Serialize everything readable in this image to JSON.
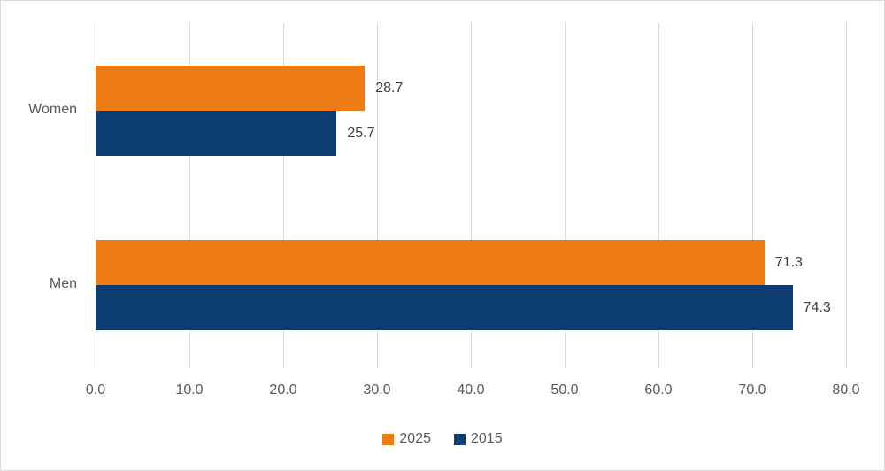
{
  "chart": {
    "colors": {
      "series_2025": "#ED7C14",
      "series_2015": "#0E3D74",
      "gridline": "#D9D9D9",
      "border": "#D9D9D9",
      "axis_text": "#595959",
      "data_label_text": "#404040",
      "background": "#FFFFFF"
    }
  },
  "chart_data": {
    "type": "bar",
    "orientation": "horizontal",
    "title": "",
    "xlabel": "",
    "ylabel": "",
    "categories": [
      "Women",
      "Men"
    ],
    "series": [
      {
        "name": "2025",
        "color": "#ED7C14",
        "values": [
          28.7,
          71.3
        ]
      },
      {
        "name": "2015",
        "color": "#0E3D74",
        "values": [
          25.7,
          74.3
        ]
      }
    ],
    "x_ticks": [
      "0.0",
      "10.0",
      "20.0",
      "30.0",
      "40.0",
      "50.0",
      "60.0",
      "70.0",
      "80.0"
    ],
    "xlim": [
      0,
      80
    ],
    "grid": true,
    "legend_position": "bottom",
    "data_labels": true
  }
}
